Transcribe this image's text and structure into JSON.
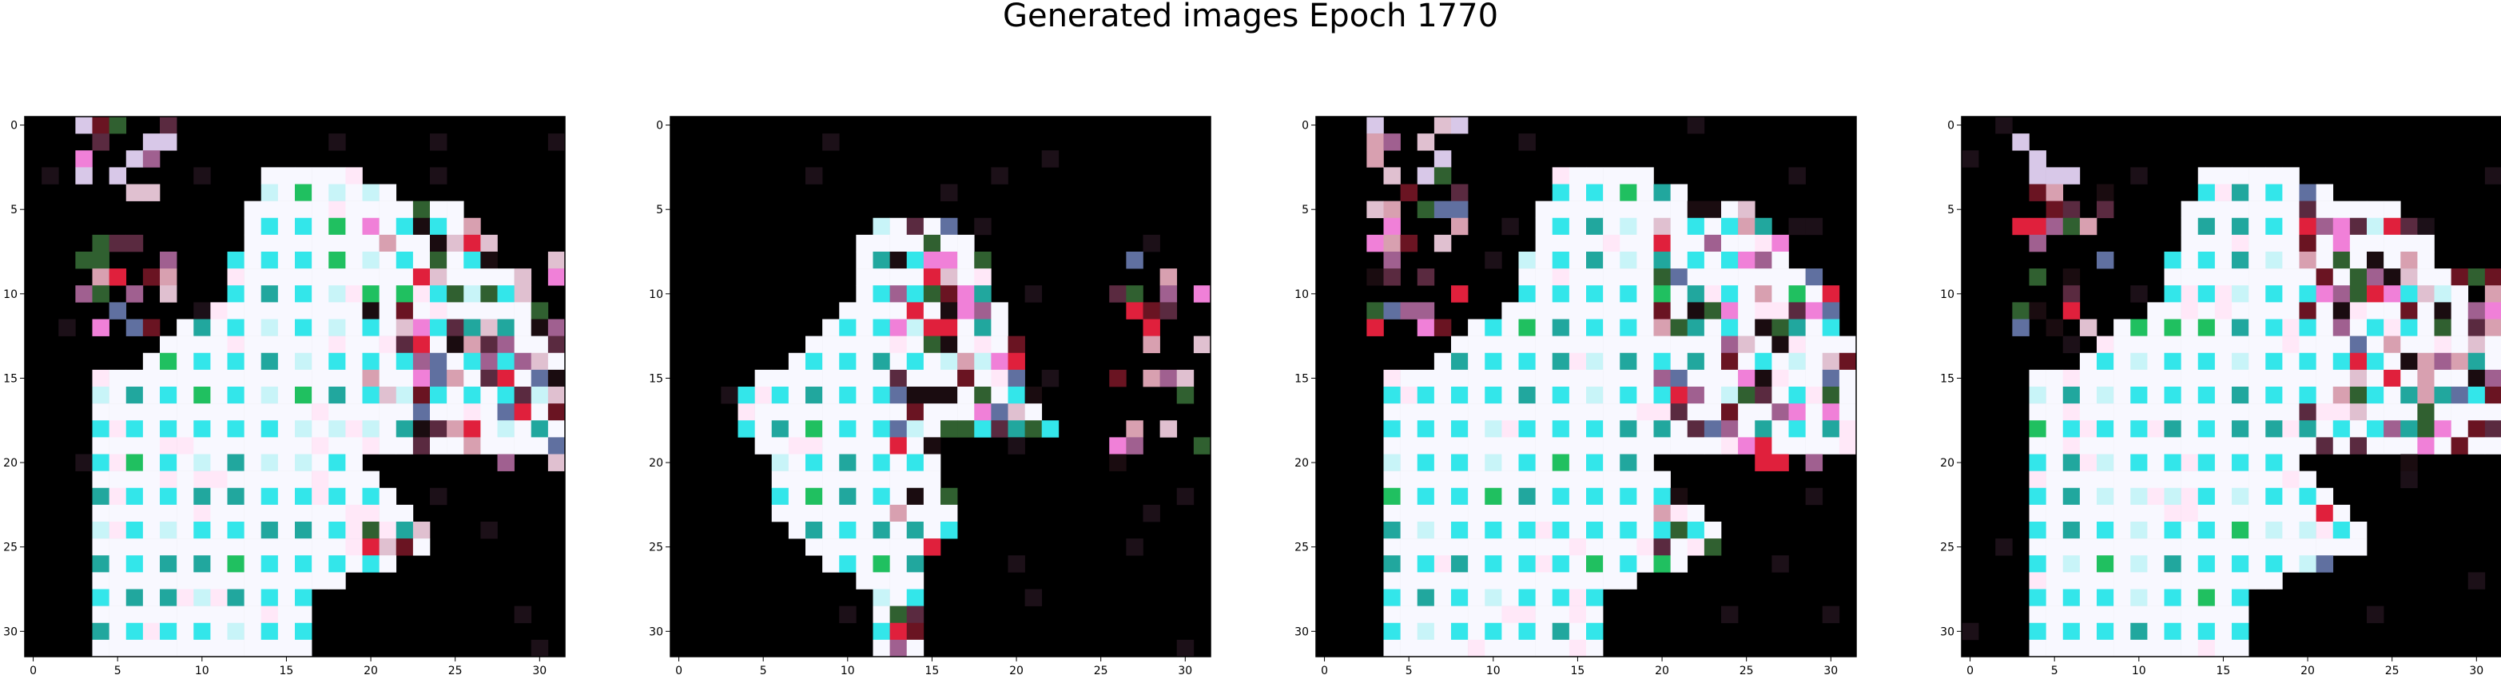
{
  "figure": {
    "title": "Generated images Epoch 1770"
  },
  "panels": [
    {
      "x_ticks": [
        "0",
        "5",
        "10",
        "15",
        "20",
        "25",
        "30"
      ],
      "y_ticks": [
        "0",
        "5",
        "10",
        "15",
        "20",
        "25",
        "30"
      ]
    },
    {
      "x_ticks": [
        "0",
        "5",
        "10",
        "15",
        "20",
        "25",
        "30"
      ],
      "y_ticks": [
        "0",
        "5",
        "10",
        "15",
        "20",
        "25",
        "30"
      ]
    },
    {
      "x_ticks": [
        "0",
        "5",
        "10",
        "15",
        "20",
        "25",
        "30"
      ],
      "y_ticks": [
        "0",
        "5",
        "10",
        "15",
        "20",
        "25",
        "30"
      ]
    },
    {
      "x_ticks": [
        "0",
        "5",
        "10",
        "15",
        "20",
        "25",
        "30"
      ],
      "y_ticks": [
        "0",
        "5",
        "10",
        "15",
        "20",
        "25",
        "30"
      ]
    }
  ],
  "colors": {
    "background": "#000000",
    "white": "#ffffff",
    "cyan": "#33e6ea",
    "teal": "#21a79e",
    "green": "#20c060",
    "pink": "#f080d8",
    "red": "#e0203c",
    "maroon": "#6a1422",
    "dark": "#1a0c10"
  }
}
